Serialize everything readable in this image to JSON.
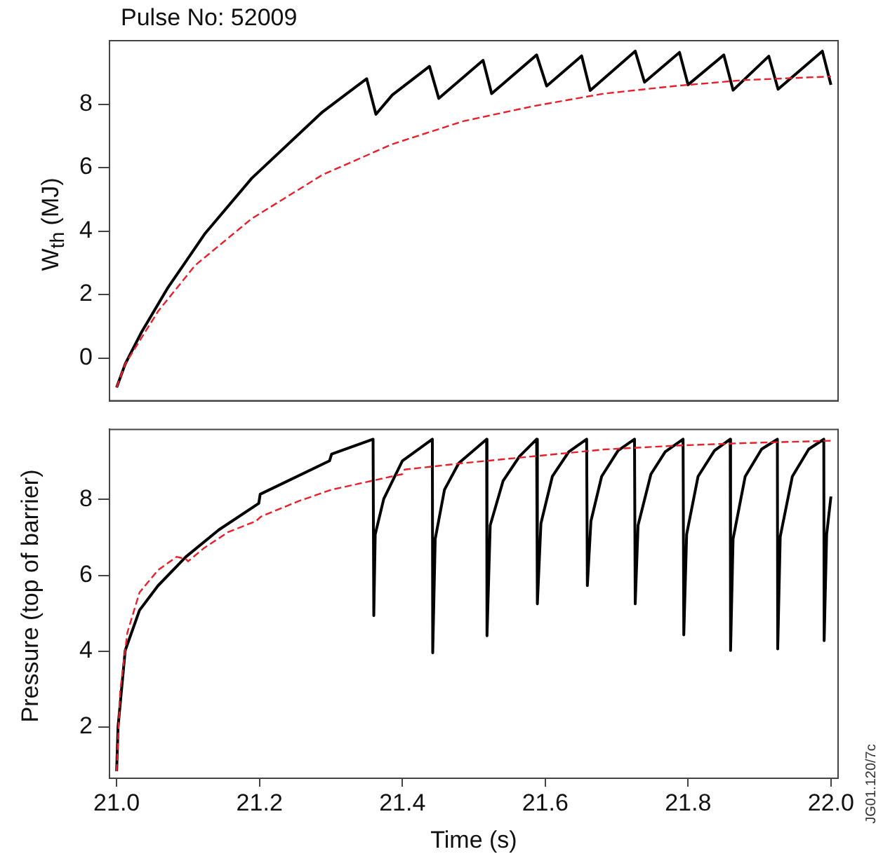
{
  "chart_data": [
    {
      "type": "line",
      "title": "Pulse No: 52009",
      "ylabel": "W$_{th}$ (MJ)",
      "xlim": [
        20.99,
        22.01
      ],
      "ylim": [
        -1.35,
        10
      ],
      "yticks": [
        0,
        2,
        4,
        6,
        8
      ],
      "tick_labels": "y",
      "grid": false,
      "legend": false,
      "marker": "none",
      "series": [
        {
          "color": "#000000",
          "line_style": "solid",
          "x": [
            21.0,
            21.012,
            21.035,
            21.071,
            21.124,
            21.189,
            21.288,
            21.35,
            21.363,
            21.386,
            21.438,
            21.451,
            21.513,
            21.525,
            21.588,
            21.602,
            21.651,
            21.663,
            21.726,
            21.739,
            21.788,
            21.8,
            21.85,
            21.863,
            21.913,
            21.926,
            21.988,
            22.0
          ],
          "values": [
            -0.93,
            -0.19,
            0.82,
            2.19,
            3.93,
            5.66,
            7.75,
            8.8,
            7.68,
            8.29,
            9.19,
            8.18,
            9.38,
            8.33,
            9.55,
            8.57,
            9.52,
            8.43,
            9.67,
            8.69,
            9.63,
            8.61,
            9.55,
            8.44,
            9.51,
            8.47,
            9.67,
            8.61
          ]
        },
        {
          "color": "#e8202a",
          "line_style": "dashed",
          "x": [
            21.0,
            21.012,
            21.058,
            21.11,
            21.189,
            21.288,
            21.386,
            21.485,
            21.584,
            21.682,
            21.781,
            21.88,
            22.0
          ],
          "values": [
            -0.93,
            -0.19,
            1.47,
            2.92,
            4.39,
            5.77,
            6.74,
            7.46,
            7.94,
            8.33,
            8.57,
            8.76,
            8.87
          ]
        }
      ]
    },
    {
      "type": "line",
      "xlabel": "Time (s)",
      "ylabel": "Pressure (top of barrier)",
      "xlim": [
        20.99,
        22.01
      ],
      "ylim": [
        0.65,
        9.85
      ],
      "xticks": [
        {
          "value": 21,
          "label": "21.0"
        },
        21.2,
        21.4,
        21.6,
        21.8,
        {
          "value": 22,
          "label": "22.0"
        }
      ],
      "yticks": [
        2,
        4,
        6,
        8
      ],
      "grid": false,
      "legend": false,
      "marker": "none",
      "annotations": [
        "JG01.120/7c"
      ],
      "series": [
        {
          "color": "#000000",
          "line_style": "solid",
          "x": [
            21.0,
            21.002,
            21.012,
            21.032,
            21.058,
            21.097,
            21.143,
            21.199,
            21.201,
            21.298,
            21.301,
            21.359,
            21.36,
            21.362,
            21.374,
            21.4,
            21.442,
            21.4425,
            21.446,
            21.459,
            21.479,
            21.518,
            21.5185,
            21.523,
            21.541,
            21.564,
            21.588,
            21.589,
            21.594,
            21.61,
            21.633,
            21.658,
            21.659,
            21.664,
            21.679,
            21.702,
            21.725,
            21.726,
            21.73,
            21.748,
            21.768,
            21.793,
            21.794,
            21.798,
            21.814,
            21.837,
            21.859,
            21.8595,
            21.863,
            21.88,
            21.903,
            21.925,
            21.9255,
            21.929,
            21.946,
            21.969,
            21.99,
            21.9905,
            21.994,
            22.0
          ],
          "values": [
            0.84,
            2.01,
            4.02,
            5.08,
            5.73,
            6.49,
            7.2,
            7.9,
            8.14,
            9.02,
            9.2,
            9.59,
            4.94,
            7.08,
            8.02,
            9.02,
            9.59,
            3.96,
            6.96,
            8.26,
            8.96,
            9.59,
            4.41,
            7.32,
            8.49,
            9.14,
            9.59,
            5.25,
            7.37,
            8.61,
            9.26,
            9.59,
            5.73,
            7.43,
            8.61,
            9.29,
            9.59,
            5.25,
            7.32,
            8.67,
            9.26,
            9.59,
            4.43,
            7.08,
            8.61,
            9.29,
            9.59,
            4.02,
            6.96,
            8.61,
            9.33,
            9.59,
            4.06,
            7.02,
            8.61,
            9.33,
            9.59,
            4.28,
            7.08,
            8.08
          ]
        },
        {
          "color": "#e8202a",
          "line_style": "dashed",
          "x": [
            21.0,
            21.005,
            21.015,
            21.032,
            21.058,
            21.084,
            21.097,
            21.1,
            21.123,
            21.156,
            21.195,
            21.202,
            21.255,
            21.301,
            21.4,
            21.403,
            21.485,
            21.584,
            21.682,
            21.781,
            21.88,
            22.0
          ],
          "values": [
            0.84,
            2.96,
            4.49,
            5.55,
            6.14,
            6.49,
            6.43,
            6.37,
            6.73,
            7.14,
            7.43,
            7.55,
            7.96,
            8.26,
            8.67,
            8.79,
            8.96,
            9.14,
            9.32,
            9.42,
            9.49,
            9.55
          ]
        }
      ]
    }
  ]
}
